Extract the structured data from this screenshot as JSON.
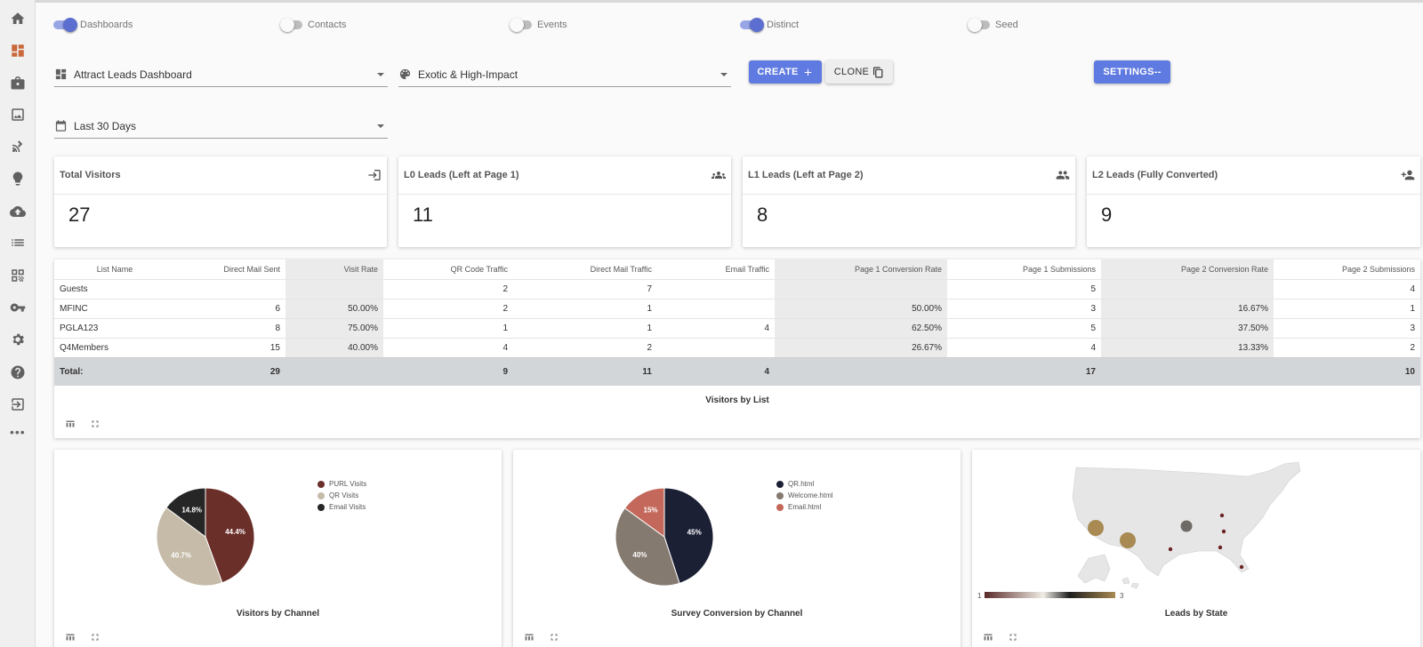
{
  "toggles": [
    {
      "label": "Dashboards",
      "on": true
    },
    {
      "label": "Contacts",
      "on": false
    },
    {
      "label": "Events",
      "on": false
    },
    {
      "label": "Distinct",
      "on": true
    },
    {
      "label": "Seed",
      "on": false
    }
  ],
  "controls": {
    "dashboard_select": "Attract Leads Dashboard",
    "theme_select": "Exotic & High-Impact",
    "date_select": "Last 30 Days",
    "create_label": "CREATE",
    "clone_label": "CLONE",
    "settings_label": "SETTINGS--"
  },
  "kpis": [
    {
      "title": "Total Visitors",
      "value": "27",
      "icon": "login-icon"
    },
    {
      "title": "L0 Leads (Left at Page 1)",
      "value": "11",
      "icon": "groups-icon"
    },
    {
      "title": "L1 Leads (Left at Page 2)",
      "value": "8",
      "icon": "people-icon"
    },
    {
      "title": "L2 Leads (Fully Converted)",
      "value": "9",
      "icon": "person-add-icon"
    }
  ],
  "table": {
    "title": "Visitors by List",
    "headers": [
      "List Name",
      "Direct Mail Sent",
      "Visit Rate",
      "QR Code Traffic",
      "Direct Mail Traffic",
      "Email Traffic",
      "Page 1 Conversion Rate",
      "Page 1 Submissions",
      "Page 2 Conversion Rate",
      "Page 2 Submissions"
    ],
    "rows": [
      [
        "Guests",
        "",
        "",
        "2",
        "7",
        "",
        "",
        "5",
        "",
        "4"
      ],
      [
        "MFINC",
        "6",
        "50.00%",
        "2",
        "1",
        "",
        "50.00%",
        "3",
        "16.67%",
        "1"
      ],
      [
        "PGLA123",
        "8",
        "75.00%",
        "1",
        "1",
        "4",
        "62.50%",
        "5",
        "37.50%",
        "3"
      ],
      [
        "Q4Members",
        "15",
        "40.00%",
        "4",
        "2",
        "",
        "26.67%",
        "4",
        "13.33%",
        "2"
      ]
    ],
    "total": [
      "Total:",
      "29",
      "",
      "9",
      "11",
      "4",
      "",
      "17",
      "",
      "10"
    ]
  },
  "chart_data": [
    {
      "type": "pie",
      "title": "Visitors by Channel",
      "labels": [
        "PURL Visits",
        "QR Visits",
        "Email Visits"
      ],
      "values": [
        44.4,
        40.7,
        14.8
      ],
      "display_labels": [
        "44.4%",
        "40.7%",
        "14.8%"
      ],
      "colors": [
        "#6b2f2a",
        "#c5bba8",
        "#262626"
      ],
      "legend": "right"
    },
    {
      "type": "pie",
      "title": "Survey Conversion by Channel",
      "labels": [
        "QR.html",
        "Welcome.html",
        "Email.html"
      ],
      "values": [
        45,
        40,
        15
      ],
      "display_labels": [
        "45%",
        "40%",
        "15%"
      ],
      "colors": [
        "#1c2035",
        "#857a70",
        "#c3685a"
      ],
      "legend": "right"
    }
  ],
  "map": {
    "title": "Leads by State",
    "scale_min": "1",
    "scale_max": "3",
    "colors": [
      "#5a2a28",
      "#f0ede6",
      "#1e1e1e",
      "#a88a52"
    ]
  }
}
